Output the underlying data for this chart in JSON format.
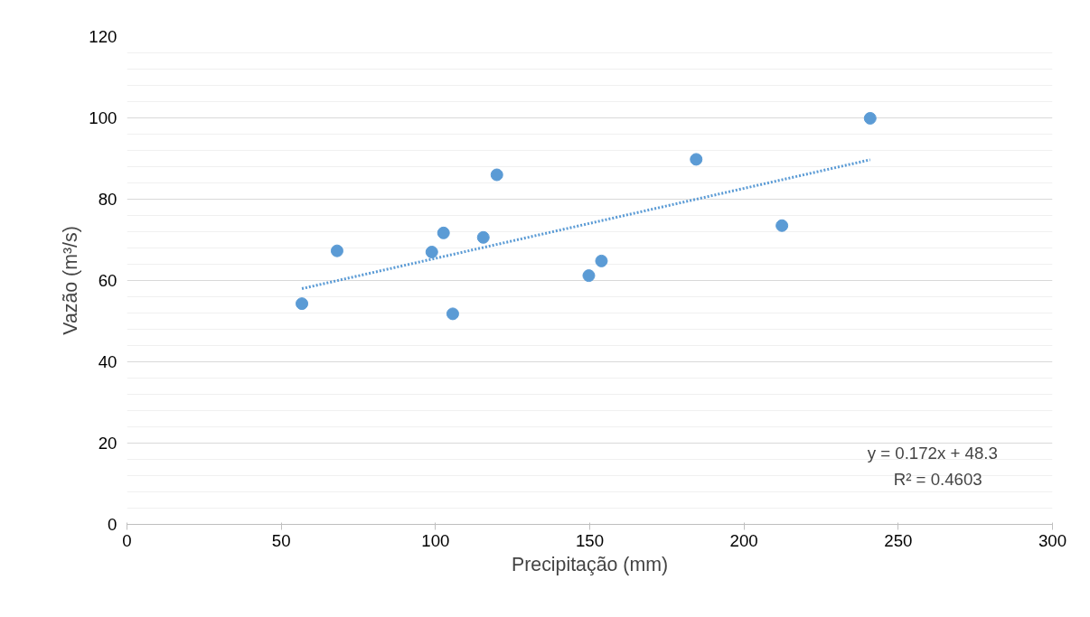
{
  "chart_data": {
    "type": "scatter",
    "xlabel": "Precipitação (mm)",
    "ylabel": "Vazão (m³/s)",
    "series": [
      {
        "color": "#5b9bd5",
        "marker": "circle",
        "x": [
          56.7,
          68.1,
          98.8,
          102.6,
          105.6,
          115.5,
          119.9,
          149.7,
          153.8,
          184.5,
          212.3,
          240.9
        ],
        "values": [
          54.3,
          67.3,
          67.0,
          71.7,
          51.8,
          70.6,
          86.0,
          61.2,
          64.8,
          89.8,
          73.5,
          99.9
        ]
      },
      {
        "type": "line",
        "color": "#5b9bd5",
        "line_style": "dotted",
        "x": [
          56.7,
          240.9
        ],
        "values": [
          58.0,
          89.7
        ]
      }
    ],
    "xlim": [
      0,
      300
    ],
    "xticks": [
      0,
      50,
      100,
      150,
      200,
      250,
      300
    ],
    "ylim": [
      0,
      120
    ],
    "yticks": [
      0,
      {
        "value": 4,
        "label": null
      },
      {
        "value": 8,
        "label": null
      },
      {
        "value": 12,
        "label": null
      },
      {
        "value": 16,
        "label": null
      },
      20,
      {
        "value": 24,
        "label": null
      },
      {
        "value": 28,
        "label": null
      },
      {
        "value": 32,
        "label": null
      },
      {
        "value": 36,
        "label": null
      },
      40,
      {
        "value": 44,
        "label": null
      },
      {
        "value": 48,
        "label": null
      },
      {
        "value": 52,
        "label": null
      },
      {
        "value": 56,
        "label": null
      },
      60,
      {
        "value": 64,
        "label": null
      },
      {
        "value": 68,
        "label": null
      },
      {
        "value": 72,
        "label": null
      },
      {
        "value": 76,
        "label": null
      },
      80,
      {
        "value": 84,
        "label": null
      },
      {
        "value": 88,
        "label": null
      },
      {
        "value": 92,
        "label": null
      },
      {
        "value": 96,
        "label": null
      },
      100,
      {
        "value": 104,
        "label": null
      },
      {
        "value": 108,
        "label": null
      },
      {
        "value": 112,
        "label": null
      },
      {
        "value": 116,
        "label": null
      },
      120
    ],
    "grid": "y",
    "annotations": [
      "y = 0.172x + 48.3",
      "R² = 0.4603"
    ]
  }
}
